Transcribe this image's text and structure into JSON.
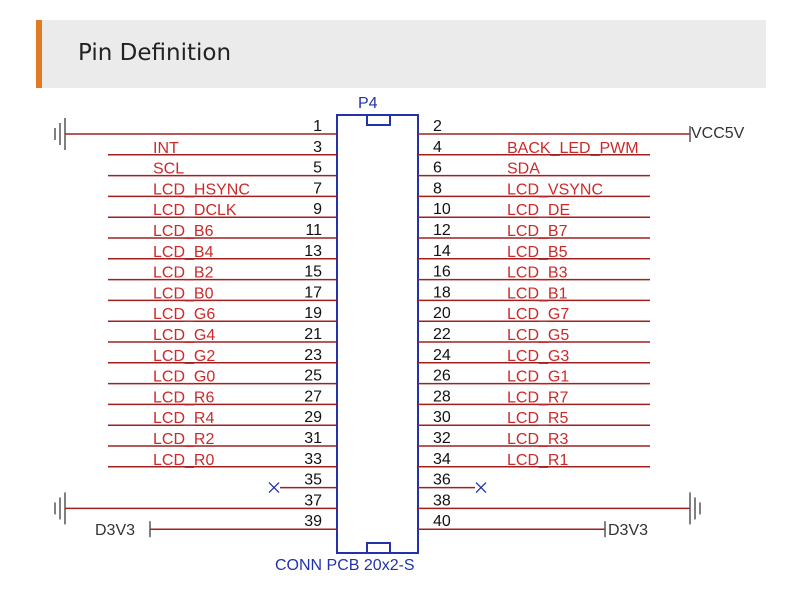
{
  "header": {
    "title": "Pin Definition"
  },
  "connector": {
    "name": "P4",
    "part": "CONN PCB 20x2-S"
  },
  "pins": {
    "left": [
      {
        "number": 1
      },
      {
        "number": 3,
        "label": "INT"
      },
      {
        "number": 5,
        "label": "SCL"
      },
      {
        "number": 7,
        "label": "LCD_HSYNC"
      },
      {
        "number": 9,
        "label": "LCD_DCLK"
      },
      {
        "number": 11,
        "label": "LCD_B6"
      },
      {
        "number": 13,
        "label": "LCD_B4"
      },
      {
        "number": 15,
        "label": "LCD_B2"
      },
      {
        "number": 17,
        "label": "LCD_B0"
      },
      {
        "number": 19,
        "label": "LCD_G6"
      },
      {
        "number": 21,
        "label": "LCD_G4"
      },
      {
        "number": 23,
        "label": "LCD_G2"
      },
      {
        "number": 25,
        "label": "LCD_G0"
      },
      {
        "number": 27,
        "label": "LCD_R6"
      },
      {
        "number": 29,
        "label": "LCD_R4"
      },
      {
        "number": 31,
        "label": "LCD_R2"
      },
      {
        "number": 33,
        "label": "LCD_R0"
      },
      {
        "number": 35
      },
      {
        "number": 37
      },
      {
        "number": 39,
        "label": "D3V3"
      }
    ],
    "right": [
      {
        "number": 2,
        "label": "VCC5V"
      },
      {
        "number": 4,
        "label": "BACK_LED_PWM"
      },
      {
        "number": 6,
        "label": "SDA"
      },
      {
        "number": 8,
        "label": "LCD_VSYNC"
      },
      {
        "number": 10,
        "label": "LCD_DE"
      },
      {
        "number": 12,
        "label": "LCD_B7"
      },
      {
        "number": 14,
        "label": "LCD_B5"
      },
      {
        "number": 16,
        "label": "LCD_B3"
      },
      {
        "number": 18,
        "label": "LCD_B1"
      },
      {
        "number": 20,
        "label": "LCD_G7"
      },
      {
        "number": 22,
        "label": "LCD_G5"
      },
      {
        "number": 24,
        "label": "LCD_G3"
      },
      {
        "number": 26,
        "label": "LCD_G1"
      },
      {
        "number": 28,
        "label": "LCD_R7"
      },
      {
        "number": 30,
        "label": "LCD_R5"
      },
      {
        "number": 32,
        "label": "LCD_R3"
      },
      {
        "number": 34,
        "label": "LCD_R1"
      },
      {
        "number": 36
      },
      {
        "number": 38
      },
      {
        "number": 40,
        "label": "D3V3"
      }
    ]
  }
}
